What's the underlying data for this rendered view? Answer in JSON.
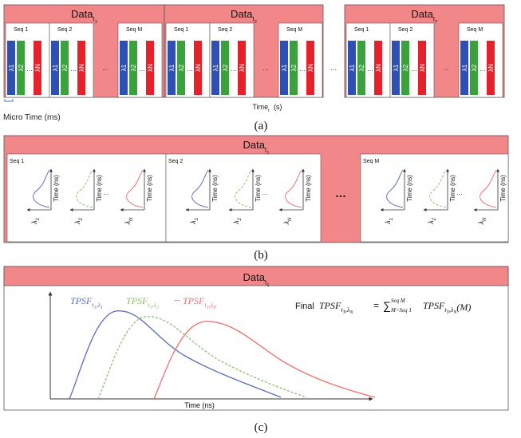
{
  "colors": {
    "panel_pink": "#f2878a",
    "lambda_blue": "#2e4fb5",
    "lambda_green": "#3aa23a",
    "lambda_red": "#e8202a",
    "curve_blue": "#5a6fb8",
    "curve_green": "#8cc06a",
    "curve_red": "#ef7070"
  },
  "panel_a": {
    "blocks": [
      {
        "data_base": "Data",
        "data_sub": "t",
        "data_subsub": "1"
      },
      {
        "data_base": "Data",
        "data_sub": "t",
        "data_subsub": "2"
      },
      {
        "data_base": "Data",
        "data_sub": "t",
        "data_subsub": "T"
      }
    ],
    "seq_labels": [
      "Seq 1",
      "Seq 2",
      "Seq M"
    ],
    "lambda_labels": [
      "λ1",
      "λ2",
      "λN"
    ],
    "ellipsis": "…",
    "time_axis_label": "Time",
    "time_axis_sub": "t",
    "time_axis_unit": "(s)",
    "micro_time_label": "Micro Time (ms)",
    "caption": "(a)"
  },
  "panel_b": {
    "title_base": "Data",
    "title_sub": "t",
    "title_subsub": "1",
    "seq_labels": [
      "Seq 1",
      "Seq 2",
      "Seq M"
    ],
    "time_axis_label": "Time (ns)",
    "lambda_base": "λ",
    "lambda_subs": [
      "1",
      "2",
      "N"
    ],
    "ellipsis": "…",
    "big_ellipsis": "…",
    "caption": "(b)"
  },
  "panel_c": {
    "title_base": "Data",
    "title_sub": "t",
    "title_subsub": "1",
    "curve_labels": [
      {
        "base": "TPSF",
        "sub": "t",
        "subsub1": "1",
        "sep": ",λ",
        "subsub2": "1"
      },
      {
        "base": "TPSF",
        "sub": "t",
        "subsub1": "1",
        "sep": ",λ",
        "subsub2": "2"
      },
      {
        "base": "TPSF",
        "sub": "t",
        "subsub1": "1",
        "sep": ",λ",
        "subsub2": "N"
      }
    ],
    "curve_ellipsis": "…",
    "final_prefix": "Final",
    "final_lhs": "TPSF",
    "final_lhs_sub": "t",
    "final_lhs_subsub": "T",
    "final_lhs_sub2": ",λ",
    "final_lhs_subsub2": "N",
    "equals": "=",
    "sigma": "∑",
    "sum_upper": "Seq M",
    "sum_lower": "M=Seq 1",
    "final_rhs": "TPSF",
    "final_rhs_sub": "t",
    "final_rhs_subsub": "T",
    "final_rhs_sub2": ",λ",
    "final_rhs_subsub2": "N",
    "final_rhs_arg": "(M)",
    "x_axis_label": "Time (ns)",
    "caption": "(c)"
  }
}
